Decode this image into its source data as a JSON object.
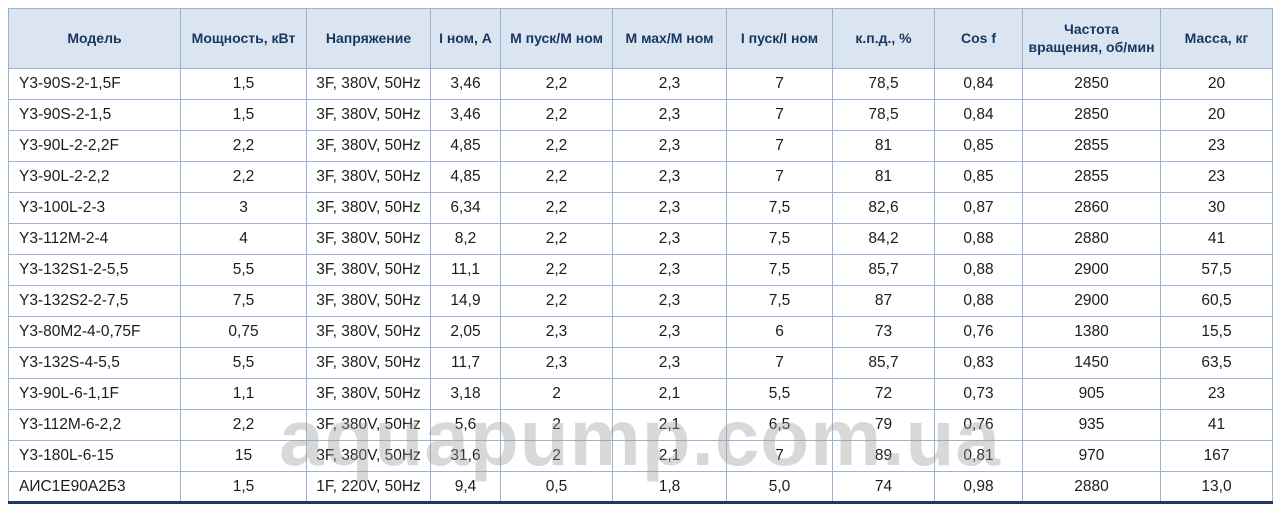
{
  "watermark": {
    "text": "aquapump.com.ua"
  },
  "colors": {
    "header_bg": "#dbe5f1",
    "border": "#9ab3d5",
    "header_text": "#17375d",
    "body_text": "#1c1c1c",
    "bottom_border": "#1c3a5e"
  },
  "table": {
    "headers": [
      "Модель",
      "Мощность, кВт",
      "Напряжение",
      "I ном, А",
      "М пуск/М ном",
      "М мах/М ном",
      "I пуск/I ном",
      "к.п.д., %",
      "Cos f",
      "Частота вращения, об/мин",
      "Масса, кг"
    ],
    "rows": [
      [
        "Y3-90S-2-1,5F",
        "1,5",
        "3F, 380V, 50Hz",
        "3,46",
        "2,2",
        "2,3",
        "7",
        "78,5",
        "0,84",
        "2850",
        "20"
      ],
      [
        "Y3-90S-2-1,5",
        "1,5",
        "3F, 380V, 50Hz",
        "3,46",
        "2,2",
        "2,3",
        "7",
        "78,5",
        "0,84",
        "2850",
        "20"
      ],
      [
        "Y3-90L-2-2,2F",
        "2,2",
        "3F, 380V, 50Hz",
        "4,85",
        "2,2",
        "2,3",
        "7",
        "81",
        "0,85",
        "2855",
        "23"
      ],
      [
        "Y3-90L-2-2,2",
        "2,2",
        "3F, 380V, 50Hz",
        "4,85",
        "2,2",
        "2,3",
        "7",
        "81",
        "0,85",
        "2855",
        "23"
      ],
      [
        "Y3-100L-2-3",
        "3",
        "3F, 380V, 50Hz",
        "6,34",
        "2,2",
        "2,3",
        "7,5",
        "82,6",
        "0,87",
        "2860",
        "30"
      ],
      [
        "Y3-112M-2-4",
        "4",
        "3F, 380V, 50Hz",
        "8,2",
        "2,2",
        "2,3",
        "7,5",
        "84,2",
        "0,88",
        "2880",
        "41"
      ],
      [
        "Y3-132S1-2-5,5",
        "5,5",
        "3F, 380V, 50Hz",
        "11,1",
        "2,2",
        "2,3",
        "7,5",
        "85,7",
        "0,88",
        "2900",
        "57,5"
      ],
      [
        "Y3-132S2-2-7,5",
        "7,5",
        "3F, 380V, 50Hz",
        "14,9",
        "2,2",
        "2,3",
        "7,5",
        "87",
        "0,88",
        "2900",
        "60,5"
      ],
      [
        "Y3-80M2-4-0,75F",
        "0,75",
        "3F, 380V, 50Hz",
        "2,05",
        "2,3",
        "2,3",
        "6",
        "73",
        "0,76",
        "1380",
        "15,5"
      ],
      [
        "Y3-132S-4-5,5",
        "5,5",
        "3F, 380V, 50Hz",
        "11,7",
        "2,3",
        "2,3",
        "7",
        "85,7",
        "0,83",
        "1450",
        "63,5"
      ],
      [
        "Y3-90L-6-1,1F",
        "1,1",
        "3F, 380V, 50Hz",
        "3,18",
        "2",
        "2,1",
        "5,5",
        "72",
        "0,73",
        "905",
        "23"
      ],
      [
        "Y3-112M-6-2,2",
        "2,2",
        "3F, 380V, 50Hz",
        "5,6",
        "2",
        "2,1",
        "6,5",
        "79",
        "0,76",
        "935",
        "41"
      ],
      [
        "Y3-180L-6-15",
        "15",
        "3F, 380V, 50Hz",
        "31,6",
        "2",
        "2,1",
        "7",
        "89",
        "0,81",
        "970",
        "167"
      ],
      [
        "АИС1Е90А2Б3",
        "1,5",
        "1F, 220V, 50Hz",
        "9,4",
        "0,5",
        "1,8",
        "5,0",
        "74",
        "0,98",
        "2880",
        "13,0"
      ]
    ]
  }
}
